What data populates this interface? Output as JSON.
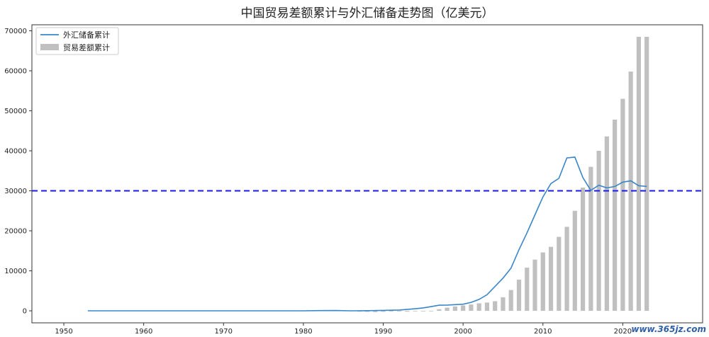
{
  "chart_data": {
    "type": "bar+line",
    "title": "中国贸易差额累计与外汇储备走势图（亿美元）",
    "xlabel": "",
    "ylabel": "",
    "xlim": [
      1946,
      2030
    ],
    "ylim": [
      -3000,
      71500
    ],
    "x_ticks": [
      1950,
      1960,
      1970,
      1980,
      1990,
      2000,
      2010,
      2020
    ],
    "y_ticks": [
      0,
      10000,
      20000,
      30000,
      40000,
      50000,
      60000,
      70000
    ],
    "reference_line": {
      "y": 30000,
      "color": "#1a1aff",
      "style": "dashed"
    },
    "legend_position": "upper-left",
    "series": [
      {
        "name": "外汇储备累计",
        "kind": "line",
        "color": "#3a86c8",
        "x": [
          1953,
          1955,
          1960,
          1965,
          1970,
          1975,
          1978,
          1980,
          1982,
          1984,
          1986,
          1988,
          1990,
          1992,
          1994,
          1995,
          1996,
          1997,
          1998,
          1999,
          2000,
          2001,
          2002,
          2003,
          2004,
          2005,
          2006,
          2007,
          2008,
          2009,
          2010,
          2011,
          2012,
          2013,
          2014,
          2015,
          2016,
          2017,
          2018,
          2019,
          2020,
          2021,
          2022,
          2023
        ],
        "values": [
          0,
          0,
          0,
          0,
          0,
          0,
          15,
          0,
          70,
          80,
          10,
          35,
          110,
          195,
          516,
          736,
          1050,
          1399,
          1450,
          1547,
          1656,
          2122,
          2864,
          4033,
          6099,
          8189,
          10663,
          15282,
          19460,
          23992,
          28473,
          31811,
          33116,
          38213,
          38430,
          33304,
          30105,
          31399,
          30727,
          31079,
          32165,
          32502,
          31277,
          31100
        ]
      },
      {
        "name": "贸易差额累计",
        "kind": "bar",
        "color": "#c0c0c0",
        "x": [
          1987,
          1988,
          1989,
          1990,
          1991,
          1992,
          1993,
          1994,
          1995,
          1996,
          1997,
          1998,
          1999,
          2000,
          2001,
          2002,
          2003,
          2004,
          2005,
          2006,
          2007,
          2008,
          2009,
          2010,
          2011,
          2012,
          2013,
          2014,
          2015,
          2016,
          2017,
          2018,
          2019,
          2020,
          2021,
          2022,
          2023
        ],
        "values": [
          -200,
          -250,
          -300,
          -220,
          -150,
          -100,
          -200,
          -120,
          -100,
          20,
          400,
          800,
          1100,
          1350,
          1580,
          1880,
          2080,
          2400,
          3400,
          5200,
          7800,
          10800,
          12800,
          14600,
          16000,
          18500,
          21000,
          25000,
          30800,
          36000,
          40000,
          43600,
          47800,
          53000,
          59800,
          68500,
          68500
        ]
      }
    ],
    "watermark": "www.365jz.com"
  }
}
